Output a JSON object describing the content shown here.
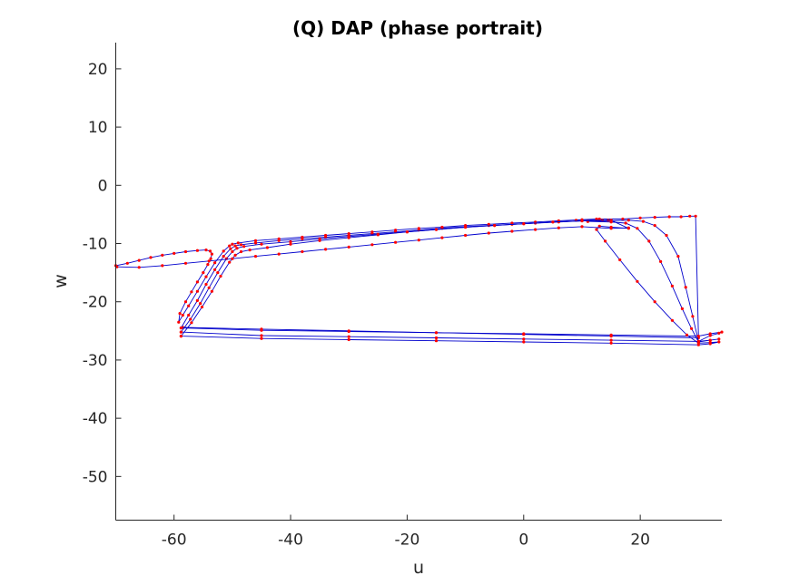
{
  "chart_data": {
    "type": "line",
    "title": "(Q) DAP (phase portrait)",
    "xlabel": "u",
    "ylabel": "w",
    "xlim": [
      -70,
      34
    ],
    "ylim": [
      -57.5,
      24.5
    ],
    "xticks": [
      -60,
      -40,
      -20,
      0,
      20
    ],
    "yticks": [
      20,
      10,
      0,
      -10,
      -20,
      -30,
      -40,
      -50
    ],
    "box": false,
    "grid": false,
    "colors": {
      "line": "#0000cc",
      "marker": "#ff0000",
      "axis": "#262626"
    },
    "series": [
      {
        "x": [
          -70.0,
          -68,
          -66,
          -64,
          -62,
          -60,
          -58,
          -56,
          -54.5,
          -53.8,
          -53.5,
          -53.7,
          -54.2,
          -55,
          -56,
          -57,
          -58,
          -59,
          -59.2,
          -58.5,
          -57.5,
          -56,
          -54.5,
          -53,
          -51.5,
          -50.5,
          -50,
          -49,
          -46,
          -42,
          -38,
          -34,
          -30,
          -26,
          -22,
          -18,
          -14,
          -10,
          -6,
          -2,
          2,
          6,
          10,
          12.5,
          9,
          13,
          17,
          20,
          22.5,
          25,
          27,
          28.5,
          29.5,
          30.0,
          15,
          0,
          -15,
          -30,
          -45,
          -58.5
        ],
        "y": [
          -13.8,
          -13.4,
          -12.9,
          -12.4,
          -12.0,
          -11.7,
          -11.4,
          -11.2,
          -11.1,
          -11.3,
          -11.8,
          -12.6,
          -13.6,
          -15.0,
          -16.6,
          -18.3,
          -20.0,
          -22.0,
          -23.5,
          -22.3,
          -20.7,
          -18.2,
          -15.7,
          -13.3,
          -11.3,
          -10.4,
          -10.1,
          -9.9,
          -9.5,
          -9.2,
          -8.9,
          -8.6,
          -8.3,
          -8.0,
          -7.7,
          -7.4,
          -7.2,
          -6.9,
          -6.7,
          -6.5,
          -6.3,
          -6.1,
          -5.9,
          -5.8,
          -6.0,
          -5.8,
          -5.8,
          -5.6,
          -5.5,
          -5.4,
          -5.4,
          -5.3,
          -5.3,
          -26.2,
          -25.9,
          -25.6,
          -25.3,
          -25.0,
          -24.7,
          -24.4
        ]
      },
      {
        "x": [
          -58.8,
          -57.5,
          -56,
          -54.5,
          -53,
          -51.5,
          -50.3,
          -49.5,
          -48.5,
          -46,
          -42,
          -38,
          -34,
          -30,
          -26,
          -22,
          -18,
          -14,
          -10,
          -6,
          -2,
          2,
          6,
          10,
          13.5,
          11,
          15,
          18,
          20.5,
          22.5,
          24.5,
          26.5,
          27.8,
          29.0,
          30.0,
          32,
          33.5,
          34.0,
          32,
          30.0,
          15,
          0,
          -15,
          -30,
          -45,
          -58.8
        ],
        "y": [
          -24.5,
          -22.3,
          -19.8,
          -17.0,
          -14.5,
          -12.2,
          -10.9,
          -10.4,
          -10.2,
          -9.9,
          -9.5,
          -9.2,
          -8.9,
          -8.6,
          -8.3,
          -8.0,
          -7.7,
          -7.4,
          -7.1,
          -6.9,
          -6.7,
          -6.5,
          -6.3,
          -6.1,
          -6.0,
          -6.2,
          -6.1,
          -6.0,
          -6.2,
          -6.9,
          -8.6,
          -12.2,
          -17.5,
          -22.5,
          -26.8,
          -25.8,
          -25.4,
          -25.2,
          -25.5,
          -25.9,
          -25.7,
          -25.5,
          -25.3,
          -25.1,
          -24.9,
          -24.5
        ]
      },
      {
        "x": [
          -58.8,
          -57.2,
          -55.5,
          -54,
          -52.5,
          -51,
          -50,
          -49.2,
          -48,
          -45,
          -40,
          -35,
          -30,
          -25,
          -20,
          -15,
          -10,
          -5,
          0,
          5,
          10,
          14.5,
          11,
          15,
          17.5,
          19.5,
          21.5,
          23.5,
          25.5,
          27.2,
          28.8,
          30.0,
          32,
          33.5,
          32,
          30.0,
          15,
          0,
          -15,
          -30,
          -45,
          -58.8
        ],
        "y": [
          -25.2,
          -23.0,
          -20.3,
          -17.6,
          -15.0,
          -12.6,
          -11.4,
          -10.8,
          -10.5,
          -10.1,
          -9.7,
          -9.2,
          -8.8,
          -8.4,
          -8.0,
          -7.6,
          -7.2,
          -6.9,
          -6.6,
          -6.3,
          -6.1,
          -6.0,
          -6.2,
          -6.3,
          -6.5,
          -7.4,
          -9.6,
          -13.1,
          -17.3,
          -21.2,
          -24.6,
          -26.9,
          -26.6,
          -26.4,
          -26.6,
          -26.8,
          -26.6,
          -26.4,
          -26.2,
          -26.0,
          -25.8,
          -25.2
        ]
      },
      {
        "x": [
          -58.8,
          -57,
          -55.2,
          -53.5,
          -52,
          -50.5,
          -49.5,
          -48.5,
          -47,
          -44,
          -40,
          -35,
          -30,
          -25,
          -20,
          -15,
          -10,
          -5,
          0,
          5,
          10,
          15,
          18,
          15,
          13,
          12.5,
          14,
          16.5,
          19.5,
          22.5,
          25.5,
          28,
          30.0,
          32,
          33.5,
          32,
          30.0,
          15,
          0,
          -15,
          -30,
          -45,
          -58.8
        ],
        "y": [
          -25.9,
          -23.6,
          -20.9,
          -18.2,
          -15.6,
          -13.2,
          -12.0,
          -11.4,
          -11.1,
          -10.7,
          -10.1,
          -9.5,
          -9.0,
          -8.5,
          -8.0,
          -7.6,
          -7.2,
          -6.9,
          -6.6,
          -6.3,
          -6.1,
          -6.0,
          -7.4,
          -7.2,
          -7.0,
          -7.6,
          -9.6,
          -12.8,
          -16.5,
          -20.0,
          -23.2,
          -25.7,
          -27.1,
          -27.0,
          -26.9,
          -27.2,
          -27.4,
          -27.1,
          -26.9,
          -26.7,
          -26.5,
          -26.3,
          -25.9
        ]
      },
      {
        "x": [
          -69.8,
          -66,
          -62,
          -58,
          -54,
          -50,
          -46,
          -42,
          -38,
          -34,
          -30,
          -26,
          -22,
          -18,
          -14,
          -10,
          -6,
          -2,
          2,
          6,
          10,
          15,
          18
        ],
        "y": [
          -14.0,
          -14.1,
          -13.8,
          -13.4,
          -13.0,
          -12.6,
          -12.2,
          -11.8,
          -11.4,
          -11.0,
          -10.6,
          -10.2,
          -9.8,
          -9.4,
          -9.0,
          -8.6,
          -8.2,
          -7.9,
          -7.6,
          -7.3,
          -7.1,
          -7.4,
          -7.3
        ]
      }
    ]
  }
}
